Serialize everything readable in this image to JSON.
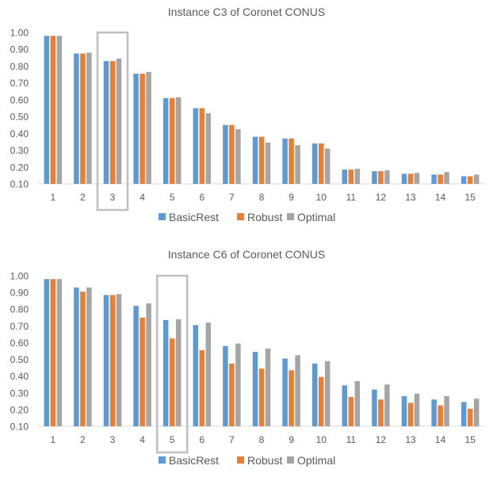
{
  "colors": {
    "BasicRest": "#5b9bd5",
    "Robust": "#ed7d31",
    "Optimal": "#a5a5a5",
    "axis": "#d9d9d9",
    "text": "#595959",
    "highlight": "#bfbfbf"
  },
  "chart_data": [
    {
      "type": "bar",
      "title": "Instance C3 of Coronet CONUS",
      "xlabel": "",
      "ylabel": "",
      "ylim": [
        0.1,
        1.0
      ],
      "yticks": [
        "0.10",
        "0.20",
        "0.30",
        "0.40",
        "0.50",
        "0.60",
        "0.70",
        "0.80",
        "0.90",
        "1.00"
      ],
      "categories": [
        "1",
        "2",
        "3",
        "4",
        "5",
        "6",
        "7",
        "8",
        "9",
        "10",
        "11",
        "12",
        "13",
        "14",
        "15"
      ],
      "highlighted_category": "3",
      "legend_position": "bottom",
      "series": [
        {
          "name": "BasicRest",
          "values": [
            0.98,
            0.875,
            0.83,
            0.755,
            0.61,
            0.55,
            0.45,
            0.38,
            0.37,
            0.34,
            0.185,
            0.175,
            0.16,
            0.155,
            0.145
          ]
        },
        {
          "name": "Robust",
          "values": [
            0.98,
            0.875,
            0.83,
            0.755,
            0.61,
            0.55,
            0.45,
            0.38,
            0.37,
            0.34,
            0.185,
            0.175,
            0.16,
            0.155,
            0.145
          ]
        },
        {
          "name": "Optimal",
          "values": [
            0.98,
            0.88,
            0.845,
            0.765,
            0.615,
            0.52,
            0.425,
            0.345,
            0.33,
            0.31,
            0.19,
            0.18,
            0.165,
            0.17,
            0.155
          ]
        }
      ]
    },
    {
      "type": "bar",
      "title": "Instance C6 of Coronet CONUS",
      "xlabel": "",
      "ylabel": "",
      "ylim": [
        0.1,
        1.0
      ],
      "yticks": [
        "0.10",
        "0.20",
        "0.30",
        "0.40",
        "0.50",
        "0.60",
        "0.70",
        "0.80",
        "0.90",
        "1.00"
      ],
      "categories": [
        "1",
        "2",
        "3",
        "4",
        "5",
        "6",
        "7",
        "8",
        "9",
        "10",
        "11",
        "12",
        "13",
        "14",
        "15"
      ],
      "highlighted_category": "5",
      "legend_position": "bottom",
      "series": [
        {
          "name": "BasicRest",
          "values": [
            0.98,
            0.93,
            0.885,
            0.82,
            0.735,
            0.705,
            0.58,
            0.545,
            0.505,
            0.475,
            0.345,
            0.32,
            0.28,
            0.26,
            0.245
          ]
        },
        {
          "name": "Robust",
          "values": [
            0.98,
            0.905,
            0.885,
            0.75,
            0.625,
            0.555,
            0.475,
            0.445,
            0.435,
            0.395,
            0.275,
            0.26,
            0.24,
            0.225,
            0.205
          ]
        },
        {
          "name": "Optimal",
          "values": [
            0.98,
            0.93,
            0.89,
            0.835,
            0.74,
            0.72,
            0.595,
            0.565,
            0.525,
            0.49,
            0.37,
            0.35,
            0.295,
            0.28,
            0.265
          ]
        }
      ]
    }
  ]
}
